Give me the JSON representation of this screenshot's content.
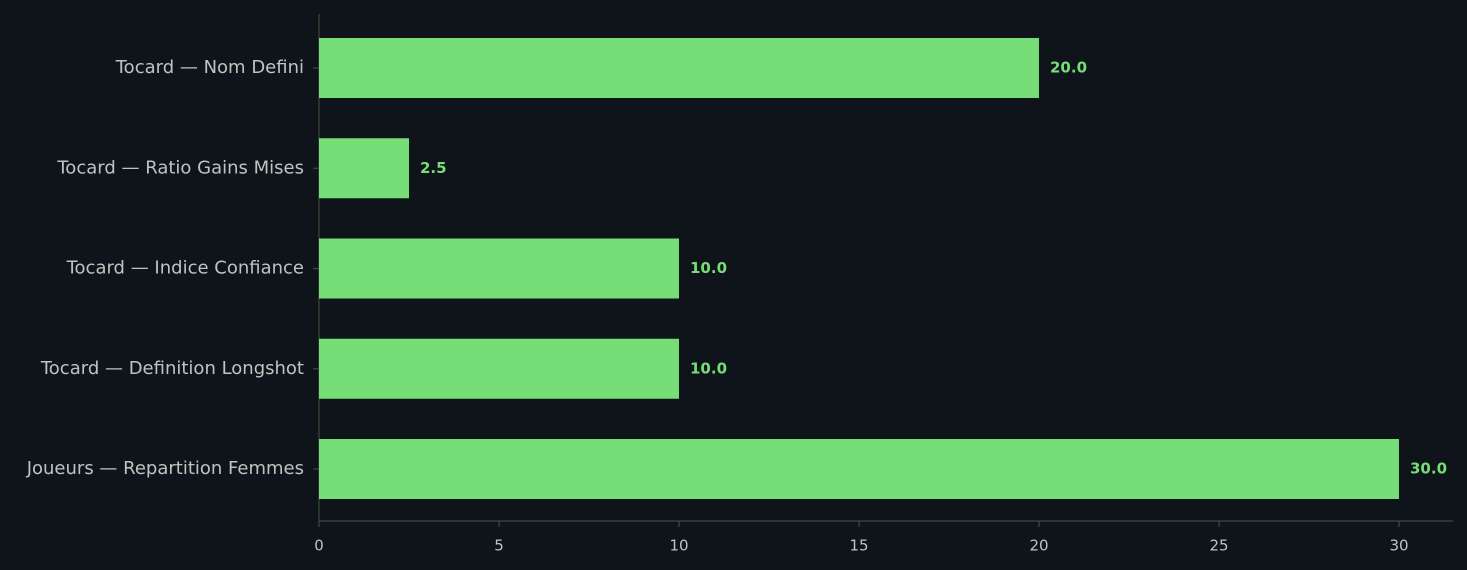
{
  "chart_data": {
    "type": "hbar",
    "categories": [
      "Tocard — Nom Defini",
      "Tocard — Ratio Gains Mises",
      "Tocard — Indice Confiance",
      "Tocard — Definition Longshot",
      "Joueurs — Repartition Femmes"
    ],
    "values": [
      20,
      2.5,
      10,
      10,
      30
    ],
    "value_labels": [
      "20.0",
      "2.5",
      "10.0",
      "10.0",
      "30.0"
    ],
    "color": "#77dd77",
    "xlim": [
      0,
      31.5
    ],
    "xticks": [
      0,
      5,
      10,
      15,
      20,
      25,
      30
    ]
  }
}
